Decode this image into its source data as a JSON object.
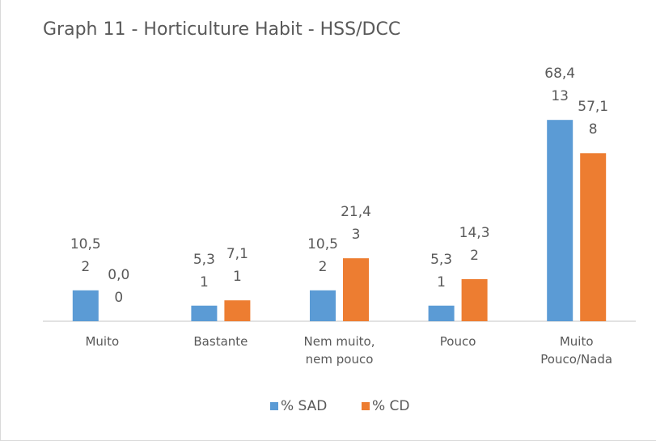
{
  "chart_data": {
    "type": "bar",
    "title": "Graph 11 - Horticulture Habit - HSS/DCC",
    "categories": [
      "Muito",
      "Bastante",
      "Nem muito,\nnem pouco",
      "Pouco",
      "Muito\nPouco/Nada"
    ],
    "series": [
      {
        "name": "% SAD",
        "color": "#5b9bd5",
        "values": [
          10.5,
          5.3,
          10.5,
          5.3,
          68.4
        ],
        "value_labels": [
          "10,5",
          "5,3",
          "10,5",
          "5,3",
          "68,4"
        ],
        "counts": [
          2,
          1,
          2,
          1,
          13
        ]
      },
      {
        "name": "% CD",
        "color": "#ed7d31",
        "values": [
          0.0,
          7.1,
          21.4,
          14.3,
          57.1
        ],
        "value_labels": [
          "0,0",
          "7,1",
          "21,4",
          "14,3",
          "57,1"
        ],
        "counts": [
          0,
          1,
          3,
          2,
          8
        ]
      }
    ],
    "ylim": [
      0,
      80
    ],
    "legend": "bottom"
  }
}
